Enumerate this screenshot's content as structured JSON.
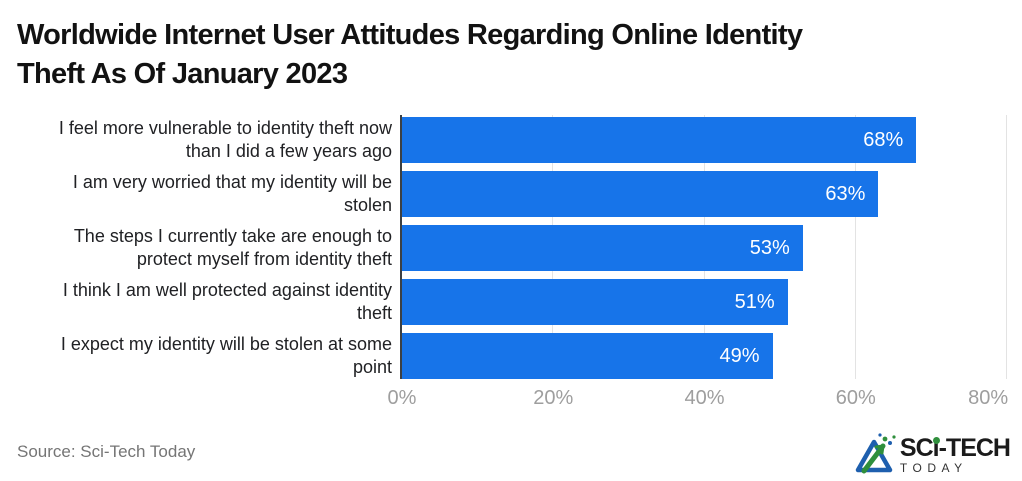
{
  "title": {
    "line1": "Worldwide Internet User Attitudes Regarding Online Identity",
    "line2": "Theft As Of January 2023"
  },
  "chart_data": {
    "type": "bar",
    "orientation": "horizontal",
    "title": "Worldwide Internet User Attitudes Regarding Online Identity Theft As Of January 2023",
    "categories": [
      "I feel more vulnerable to identity theft now than I did a few years ago",
      "I am very worried that my identity will be stolen",
      "The steps I currently take are enough to protect myself from identity theft",
      "I think I am well protected against identity theft",
      "I expect my identity will be stolen at some point"
    ],
    "label_lines": [
      [
        "I feel more vulnerable to identity theft now",
        "than I did a few years ago"
      ],
      [
        "I am very worried that my identity will be",
        "stolen"
      ],
      [
        "The steps I currently take are enough to",
        "protect myself from identity theft"
      ],
      [
        "I think I am well protected against identity",
        "theft"
      ],
      [
        "I expect my identity will be stolen at some",
        "point"
      ]
    ],
    "values": [
      68,
      63,
      53,
      51,
      49
    ],
    "value_labels": [
      "68%",
      "63%",
      "53%",
      "51%",
      "49%"
    ],
    "axis": {
      "min": 0,
      "max": 80,
      "gridlines": [
        20,
        40,
        60,
        80
      ],
      "ticks": [
        {
          "value": 0,
          "label": "0%"
        },
        {
          "value": 20,
          "label": "20%"
        },
        {
          "value": 40,
          "label": "40%"
        },
        {
          "value": 60,
          "label": "60%"
        },
        {
          "value": 80,
          "label": "80%"
        }
      ]
    },
    "grid_on": true,
    "legend": "none",
    "colors": {
      "bar": "#1774e9",
      "value_label": "#ffffff",
      "axis_line": "#3c4043",
      "gridline": "#e3e3e3",
      "tick_label": "#9e9e9e",
      "category_label": "#202124"
    }
  },
  "footer": {
    "source": "Source: Sci-Tech Today",
    "logo": {
      "prefix": "SC",
      "i": "i",
      "suffix": "-TECH",
      "line2": "TODAY",
      "brand_blue": "#1e5fae",
      "brand_green": "#2f8f3c"
    }
  }
}
